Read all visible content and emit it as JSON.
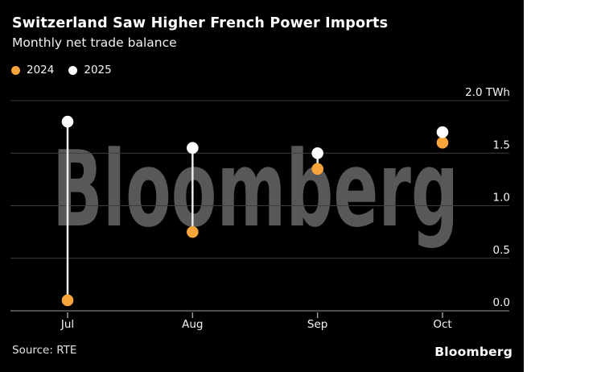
{
  "header": {
    "title": "Switzerland Saw Higher French Power Imports",
    "subtitle": "Monthly net trade balance"
  },
  "legend": [
    {
      "label": "2024",
      "color": "#f7a43b"
    },
    {
      "label": "2025",
      "color": "#ffffff"
    }
  ],
  "watermark": "Bloomberg",
  "footer": {
    "source": "Source: RTE",
    "brand": "Bloomberg"
  },
  "colors": {
    "background": "#000000",
    "grid": "#3d3d40",
    "axis": "#9c9c9e",
    "tick": "#9c9c9e",
    "watermark": "#58585a",
    "connector": "#ececec",
    "axis_text": "#f5f5f5",
    "series_2024": "#f7a43b",
    "series_2025": "#ffffff"
  },
  "chart_data": {
    "type": "scatter",
    "title": "Switzerland Saw Higher French Power Imports",
    "subtitle": "Monthly net trade balance",
    "categories": [
      "Jul",
      "Aug",
      "Sep",
      "Oct"
    ],
    "series": [
      {
        "name": "2024",
        "color": "#f7a43b",
        "values": [
          0.1,
          0.75,
          1.35,
          1.6
        ]
      },
      {
        "name": "2025",
        "color": "#ffffff",
        "values": [
          1.8,
          1.55,
          1.5,
          1.7
        ]
      }
    ],
    "unit": "TWh",
    "ylim": [
      0.0,
      2.0
    ],
    "yticks": [
      0.0,
      0.5,
      1.0,
      1.5,
      2.0
    ],
    "ytick_labels": [
      "0.0",
      "0.5",
      "1.0",
      "1.5",
      "2.0 TWh"
    ],
    "grid": "horizontal",
    "legend_position": "top-left",
    "connector_between_series": true
  }
}
